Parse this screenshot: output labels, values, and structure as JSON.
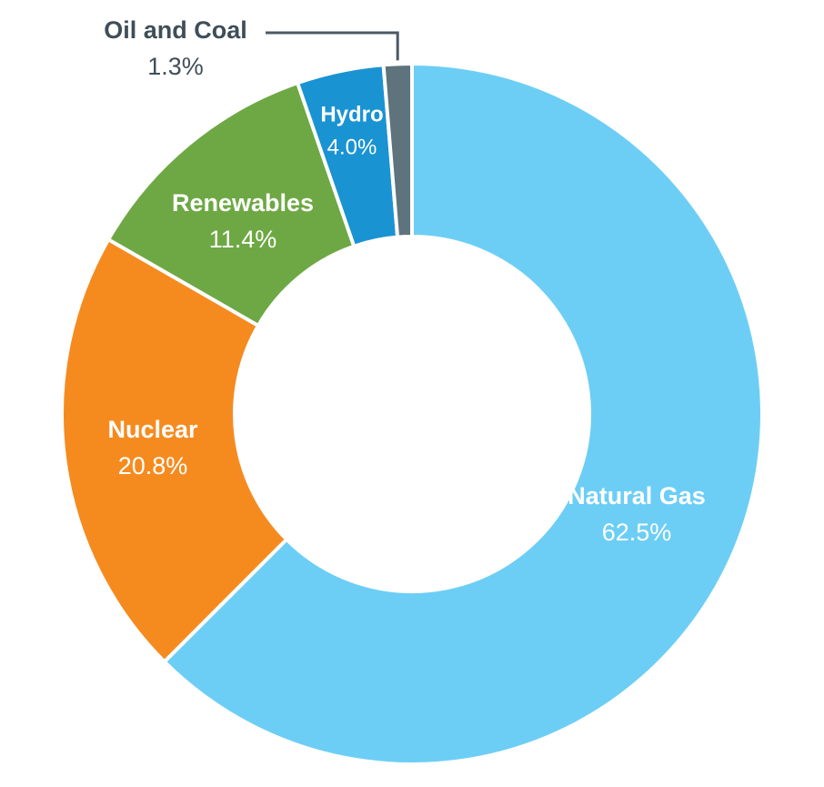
{
  "chart_data": {
    "type": "pie",
    "variant": "donut",
    "title": "",
    "slices": [
      {
        "label": "Natural Gas",
        "value": 62.5,
        "value_label": "62.5%",
        "color": "#6dcef5"
      },
      {
        "label": "Nuclear",
        "value": 20.8,
        "value_label": "20.8%",
        "color": "#f58b1f"
      },
      {
        "label": "Renewables",
        "value": 11.4,
        "value_label": "11.4%",
        "color": "#6ea844"
      },
      {
        "label": "Hydro",
        "value": 4.0,
        "value_label": "4.0%",
        "color": "#1a93d2"
      },
      {
        "label": "Oil and Coal",
        "value": 1.3,
        "value_label": "1.3%",
        "color": "#5f737c"
      }
    ],
    "direction": "clockwise",
    "start": "top",
    "legend": "none",
    "label_colors": {
      "inside": "#ffffff",
      "outside": "#3f4e58"
    }
  }
}
